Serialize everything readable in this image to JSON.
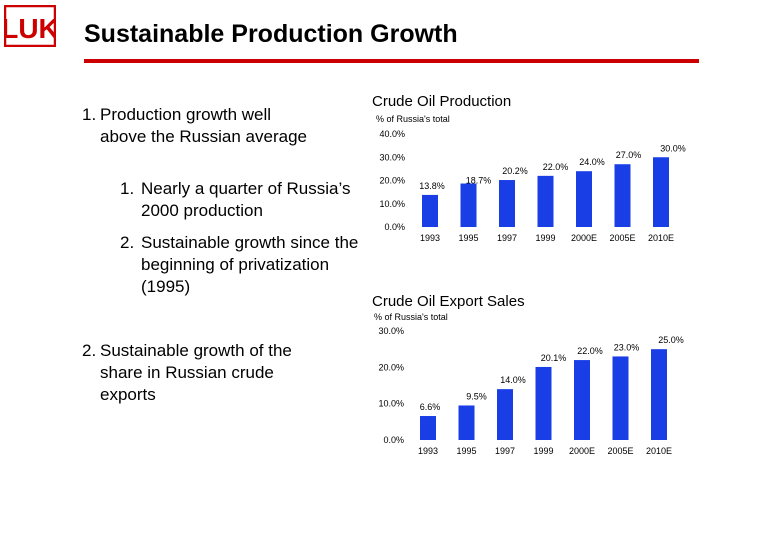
{
  "header": {
    "title": "Sustainable Production Growth",
    "logo_text": "LUK",
    "brand_color": "#cc0000"
  },
  "bullets": {
    "b1_num": "1.",
    "b1_text": "Production growth well above the Russian average",
    "b11_num": "1.",
    "b11_text": "Nearly a quarter of Russia’s 2000 production",
    "b12_num": "2.",
    "b12_text": "Sustainable growth since the beginning of privatization (1995)",
    "b2_num": "2.",
    "b2_text": "Sustainable growth of the share in Russian crude exports"
  },
  "bar_color": "#1a3ee6",
  "chart_data": [
    {
      "type": "bar",
      "title": "Crude Oil Production",
      "subtitle": "% of Russia's total",
      "categories": [
        "1993",
        "1995",
        "1997",
        "1999",
        "2000E",
        "2005E",
        "2010E"
      ],
      "values": [
        13.8,
        18.7,
        20.2,
        22.0,
        24.0,
        27.0,
        30.0
      ],
      "value_labels": [
        "13.8%",
        "18.7%",
        "20.2%",
        "22.0%",
        "24.0%",
        "27.0%",
        "30.0%"
      ],
      "yticks": [
        "0.0%",
        "10.0%",
        "20.0%",
        "30.0%",
        "40.0%"
      ],
      "ylim": [
        0,
        40
      ],
      "xlabel": "",
      "ylabel": ""
    },
    {
      "type": "bar",
      "title": "Crude Oil Export Sales",
      "subtitle": "% of Russia's total",
      "categories": [
        "1993",
        "1995",
        "1997",
        "1999",
        "2000E",
        "2005E",
        "2010E"
      ],
      "values": [
        6.6,
        9.5,
        14.0,
        20.1,
        22.0,
        23.0,
        25.0
      ],
      "value_labels": [
        "6.6%",
        "9.5%",
        "14.0%",
        "20.1%",
        "22.0%",
        "23.0%",
        "25.0%"
      ],
      "yticks": [
        "0.0%",
        "10.0%",
        "20.0%",
        "30.0%"
      ],
      "ylim": [
        0,
        30
      ],
      "xlabel": "",
      "ylabel": ""
    }
  ]
}
